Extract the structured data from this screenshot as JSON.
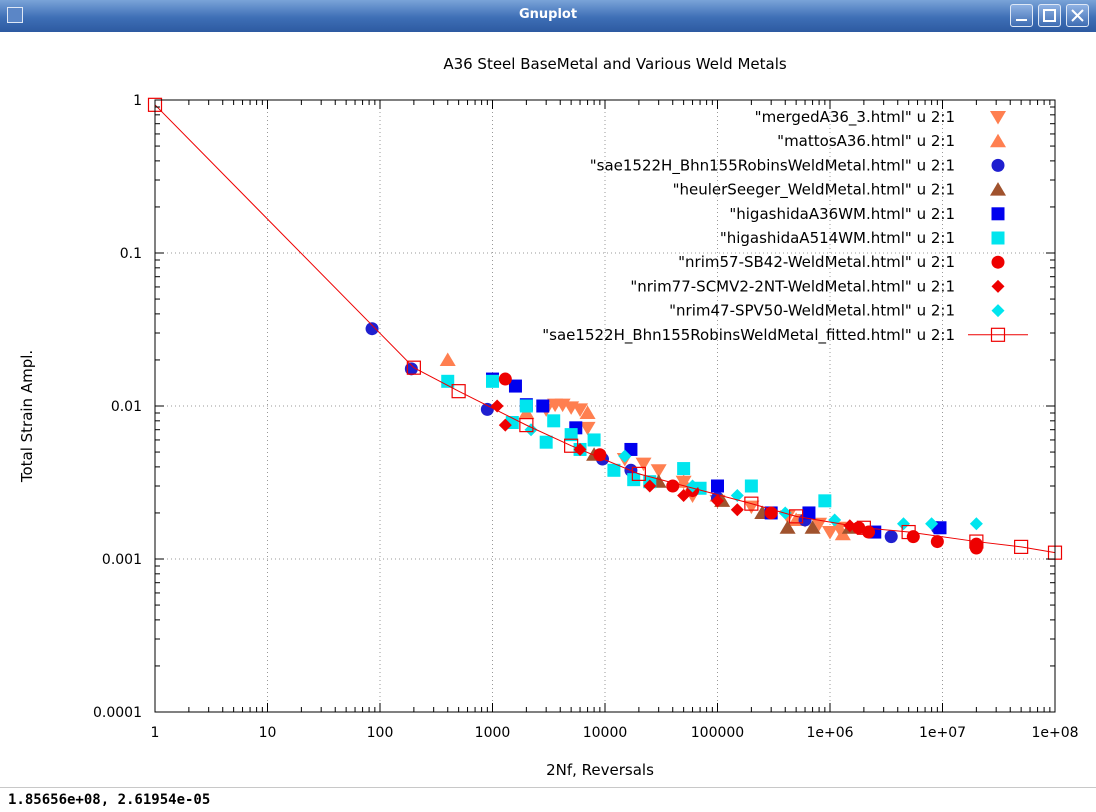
{
  "window": {
    "title": "Gnuplot",
    "status_readout": "1.85656e+08,  2.61954e-05"
  },
  "chart_data": {
    "type": "scatter",
    "title": "A36 Steel BaseMetal and Various Weld Metals",
    "xlabel": "2Nf, Reversals",
    "ylabel": "Total Strain Ampl.",
    "x_scale": "log",
    "y_scale": "log",
    "xlim": [
      1,
      100000000
    ],
    "ylim": [
      0.0001,
      1
    ],
    "x_ticks": [
      {
        "v": 1,
        "label": "1"
      },
      {
        "v": 10,
        "label": "10"
      },
      {
        "v": 100,
        "label": "100"
      },
      {
        "v": 1000,
        "label": "1000"
      },
      {
        "v": 10000,
        "label": "10000"
      },
      {
        "v": 100000,
        "label": "100000"
      },
      {
        "v": 1000000,
        "label": "1e+06"
      },
      {
        "v": 10000000,
        "label": "1e+07"
      },
      {
        "v": 100000000,
        "label": "1e+08"
      }
    ],
    "y_ticks": [
      {
        "v": 1,
        "label": "1"
      },
      {
        "v": 0.1,
        "label": "0.1"
      },
      {
        "v": 0.01,
        "label": "0.01"
      },
      {
        "v": 0.001,
        "label": "0.001"
      },
      {
        "v": 0.0001,
        "label": "0.0001"
      }
    ],
    "grid": true,
    "legend_position": "top-right",
    "series": [
      {
        "name": "\"mergedA36_3.html\" u 2:1",
        "marker": "triangle-down",
        "color": "#ff7f50",
        "points": [
          [
            3000,
            0.0095
          ],
          [
            3600,
            0.0102
          ],
          [
            4200,
            0.0102
          ],
          [
            5000,
            0.0098
          ],
          [
            6000,
            0.0095
          ],
          [
            7000,
            0.0072
          ],
          [
            15000,
            0.0045
          ],
          [
            22000,
            0.0042
          ],
          [
            30000,
            0.0038
          ],
          [
            50000,
            0.0032
          ],
          [
            60000,
            0.0026
          ],
          [
            100000,
            0.0024
          ],
          [
            200000,
            0.0022
          ],
          [
            420000,
            0.0019
          ],
          [
            600000,
            0.0018
          ],
          [
            800000,
            0.0017
          ],
          [
            1000000,
            0.0015
          ],
          [
            1200000,
            0.0016
          ]
        ]
      },
      {
        "name": "\"mattosA36.html\" u 2:1",
        "marker": "triangle-up",
        "color": "#ff7f50",
        "points": [
          [
            400,
            0.02
          ],
          [
            2000,
            0.009
          ],
          [
            7000,
            0.009
          ],
          [
            50000,
            0.0032
          ],
          [
            100000,
            0.0026
          ],
          [
            500000,
            0.0018
          ],
          [
            1300000,
            0.00145
          ]
        ]
      },
      {
        "name": "\"sae1522H_Bhn155RobinsWeldMetal.html\" u 2:1",
        "marker": "circle",
        "color": "#1f1fcf",
        "points": [
          [
            85,
            0.032
          ],
          [
            190,
            0.0175
          ],
          [
            900,
            0.0095
          ],
          [
            9500,
            0.0045
          ],
          [
            17000,
            0.0038
          ],
          [
            100000,
            0.0025
          ],
          [
            600000,
            0.0018
          ],
          [
            3500000,
            0.0014
          ],
          [
            9000000,
            0.0016
          ]
        ]
      },
      {
        "name": "\"heulerSeeger_WeldMetal.html\" u 2:1",
        "marker": "triangle-up",
        "color": "#a0522d",
        "points": [
          [
            8000,
            0.0048
          ],
          [
            30000,
            0.0032
          ],
          [
            110000,
            0.0024
          ],
          [
            250000,
            0.002
          ],
          [
            420000,
            0.0016
          ],
          [
            700000,
            0.0016
          ],
          [
            1500000,
            0.0016
          ]
        ]
      },
      {
        "name": "\"higashidaA36WM.html\" u 2:1",
        "marker": "square",
        "color": "#0000ee",
        "points": [
          [
            1000,
            0.015
          ],
          [
            1600,
            0.0135
          ],
          [
            2000,
            0.0102
          ],
          [
            2800,
            0.01
          ],
          [
            5500,
            0.0072
          ],
          [
            17000,
            0.0052
          ],
          [
            100000,
            0.003
          ],
          [
            300000,
            0.002
          ],
          [
            650000,
            0.002
          ],
          [
            2500000,
            0.0015
          ],
          [
            9500000,
            0.0016
          ]
        ]
      },
      {
        "name": "\"higashidaA514WM.html\" u 2:1",
        "marker": "square",
        "color": "#00e5ee",
        "points": [
          [
            400,
            0.0145
          ],
          [
            1000,
            0.0145
          ],
          [
            1500,
            0.0078
          ],
          [
            2000,
            0.01
          ],
          [
            3000,
            0.0058
          ],
          [
            3500,
            0.008
          ],
          [
            5000,
            0.0065
          ],
          [
            6000,
            0.0052
          ],
          [
            8000,
            0.006
          ],
          [
            12000,
            0.0038
          ],
          [
            18000,
            0.0033
          ],
          [
            25000,
            0.0032
          ],
          [
            50000,
            0.0039
          ],
          [
            70000,
            0.0029
          ],
          [
            200000,
            0.003
          ],
          [
            900000,
            0.0024
          ]
        ]
      },
      {
        "name": "\"nrim57-SB42-WeldMetal.html\" u 2:1",
        "marker": "circle",
        "color": "#ee0000",
        "points": [
          [
            1300,
            0.015
          ],
          [
            9000,
            0.0048
          ],
          [
            40000,
            0.003
          ],
          [
            60000,
            0.0028
          ],
          [
            300000,
            0.002
          ],
          [
            1800000,
            0.0016
          ],
          [
            2200000,
            0.0015
          ],
          [
            5500000,
            0.0014
          ],
          [
            9000000,
            0.0013
          ],
          [
            20000000,
            0.00125
          ],
          [
            20000000,
            0.00118
          ]
        ]
      },
      {
        "name": "\"nrim77-SCMV2-2NT-WeldMetal.html\" u 2:1",
        "marker": "diamond",
        "color": "#ee0000",
        "points": [
          [
            1100,
            0.01
          ],
          [
            1300,
            0.0075
          ],
          [
            6000,
            0.0052
          ],
          [
            25000,
            0.003
          ],
          [
            50000,
            0.0026
          ],
          [
            100000,
            0.0024
          ],
          [
            150000,
            0.0021
          ],
          [
            1500000,
            0.00165
          ]
        ]
      },
      {
        "name": "\"nrim47-SPV50-WeldMetal.html\" u 2:1",
        "marker": "diamond",
        "color": "#00e5ee",
        "points": [
          [
            2200,
            0.007
          ],
          [
            15000,
            0.0047
          ],
          [
            60000,
            0.003
          ],
          [
            150000,
            0.0026
          ],
          [
            400000,
            0.002
          ],
          [
            1100000,
            0.0018
          ],
          [
            4500000,
            0.0017
          ],
          [
            8000000,
            0.0017
          ],
          [
            20000000,
            0.0017
          ]
        ]
      },
      {
        "name": "\"sae1522H_Bhn155RobinsWeldMetal_fitted.html\" u 2:1",
        "marker": "open-square-line",
        "color": "#ee0000",
        "points": [
          [
            1,
            0.93
          ],
          [
            200,
            0.0178
          ],
          [
            500,
            0.0125
          ],
          [
            2000,
            0.0075
          ],
          [
            5000,
            0.0055
          ],
          [
            20000,
            0.0036
          ],
          [
            200000,
            0.0023
          ],
          [
            500000,
            0.0019
          ],
          [
            2000000,
            0.0016
          ],
          [
            5000000,
            0.0015
          ],
          [
            20000000,
            0.0013
          ],
          [
            50000000,
            0.0012
          ],
          [
            100000000,
            0.0011
          ]
        ]
      }
    ]
  }
}
